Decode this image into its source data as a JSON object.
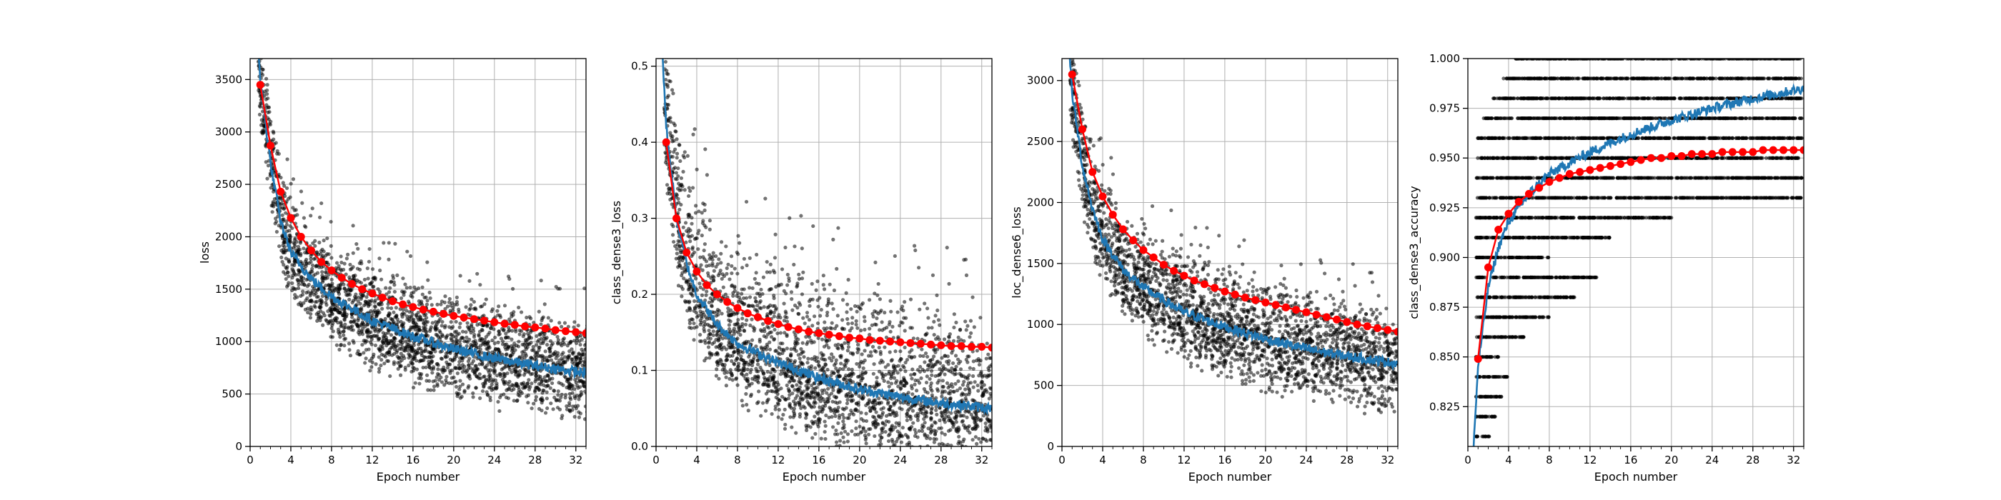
{
  "colors": {
    "batch_points": "#000000",
    "train_line": "#1f77b4",
    "val_line": "#ff0000",
    "grid": "#b0b0b0"
  },
  "chart_data": [
    {
      "type": "line",
      "xlabel": "Epoch number",
      "ylabel": "loss",
      "xlim": [
        0,
        33
      ],
      "ylim": [
        0,
        3700
      ],
      "xticks": [
        0,
        4,
        8,
        12,
        16,
        20,
        24,
        28,
        32
      ],
      "yticks": [
        0,
        500,
        1000,
        1500,
        2000,
        2500,
        3000,
        3500
      ],
      "tick_labels": [
        "0",
        "4",
        "8",
        "12",
        "16",
        "20",
        "24",
        "28",
        "32"
      ],
      "ytick_labels": [
        "0",
        "500",
        "1000",
        "1500",
        "2000",
        "2500",
        "3000",
        "3500"
      ],
      "grid": true,
      "series": [
        {
          "kind": "batch-scatter",
          "curve": {
            "x": [
              0.5,
              1,
              2,
              3,
              4,
              6,
              8,
              12,
              16,
              20,
              24,
              28,
              33
            ],
            "y": [
              4300,
              3500,
              2700,
              2150,
              1850,
              1600,
              1430,
              1200,
              1050,
              930,
              840,
              770,
              700
            ]
          },
          "spread_top": 280,
          "spread_bottom": 250
        },
        {
          "kind": "train-line",
          "x": [
            0.5,
            1,
            2,
            3,
            4,
            6,
            8,
            12,
            16,
            20,
            24,
            28,
            33
          ],
          "y": [
            4300,
            3500,
            2700,
            2150,
            1850,
            1600,
            1430,
            1200,
            1050,
            930,
            840,
            770,
            700
          ]
        },
        {
          "kind": "val-markers",
          "x": [
            1,
            2,
            3,
            4,
            5,
            6,
            7,
            8,
            9,
            10,
            11,
            12,
            13,
            14,
            15,
            16,
            17,
            18,
            19,
            20,
            21,
            22,
            23,
            24,
            25,
            26,
            27,
            28,
            29,
            30,
            31,
            32,
            33
          ],
          "y": [
            3450,
            2870,
            2430,
            2180,
            2000,
            1870,
            1760,
            1680,
            1610,
            1550,
            1500,
            1460,
            1420,
            1385,
            1355,
            1330,
            1305,
            1285,
            1265,
            1245,
            1230,
            1215,
            1200,
            1185,
            1170,
            1160,
            1145,
            1135,
            1125,
            1110,
            1100,
            1090,
            1080
          ]
        }
      ]
    },
    {
      "type": "line",
      "xlabel": "Epoch number",
      "ylabel": "class_dense3_loss",
      "xlim": [
        0,
        33
      ],
      "ylim": [
        0,
        0.51
      ],
      "xticks": [
        0,
        4,
        8,
        12,
        16,
        20,
        24,
        28,
        32
      ],
      "yticks": [
        0,
        0.1,
        0.2,
        0.3,
        0.4,
        0.5
      ],
      "tick_labels": [
        "0",
        "4",
        "8",
        "12",
        "16",
        "20",
        "24",
        "28",
        "32"
      ],
      "ytick_labels": [
        "0.0",
        "0.1",
        "0.2",
        "0.3",
        "0.4",
        "0.5"
      ],
      "grid": true,
      "series": [
        {
          "kind": "batch-scatter",
          "curve": {
            "x": [
              0.5,
              1,
              2,
              3,
              4,
              6,
              8,
              12,
              16,
              20,
              24,
              28,
              33
            ],
            "y": [
              0.55,
              0.42,
              0.3,
              0.24,
              0.2,
              0.16,
              0.135,
              0.11,
              0.09,
              0.075,
              0.065,
              0.057,
              0.05
            ]
          },
          "spread_top": 0.07,
          "spread_bottom": 0.045
        },
        {
          "kind": "train-line",
          "x": [
            0.5,
            1,
            2,
            3,
            4,
            6,
            8,
            12,
            16,
            20,
            24,
            28,
            33
          ],
          "y": [
            0.55,
            0.42,
            0.3,
            0.24,
            0.2,
            0.16,
            0.135,
            0.11,
            0.09,
            0.075,
            0.065,
            0.057,
            0.05
          ]
        },
        {
          "kind": "val-markers",
          "x": [
            1,
            2,
            3,
            4,
            5,
            6,
            7,
            8,
            9,
            10,
            11,
            12,
            13,
            14,
            15,
            16,
            17,
            18,
            19,
            20,
            21,
            22,
            23,
            24,
            25,
            26,
            27,
            28,
            29,
            30,
            31,
            32,
            33
          ],
          "y": [
            0.4,
            0.3,
            0.255,
            0.23,
            0.212,
            0.2,
            0.19,
            0.182,
            0.175,
            0.17,
            0.165,
            0.161,
            0.157,
            0.154,
            0.151,
            0.149,
            0.147,
            0.145,
            0.143,
            0.142,
            0.14,
            0.139,
            0.138,
            0.137,
            0.136,
            0.135,
            0.134,
            0.133,
            0.132,
            0.132,
            0.131,
            0.131,
            0.13
          ]
        }
      ]
    },
    {
      "type": "line",
      "xlabel": "Epoch number",
      "ylabel": "loc_dense6_loss",
      "xlim": [
        0,
        33
      ],
      "ylim": [
        0,
        3180
      ],
      "xticks": [
        0,
        4,
        8,
        12,
        16,
        20,
        24,
        28,
        32
      ],
      "yticks": [
        0,
        500,
        1000,
        1500,
        2000,
        2500,
        3000
      ],
      "tick_labels": [
        "0",
        "4",
        "8",
        "12",
        "16",
        "20",
        "24",
        "28",
        "32"
      ],
      "ytick_labels": [
        "0",
        "500",
        "1000",
        "1500",
        "2000",
        "2500",
        "3000"
      ],
      "grid": true,
      "series": [
        {
          "kind": "batch-scatter",
          "curve": {
            "x": [
              0.5,
              1,
              2,
              3,
              4,
              6,
              8,
              12,
              16,
              20,
              24,
              28,
              33
            ],
            "y": [
              3500,
              2900,
              2300,
              1950,
              1700,
              1450,
              1300,
              1100,
              980,
              880,
              800,
              740,
              680
            ]
          },
          "spread_top": 260,
          "spread_bottom": 230
        },
        {
          "kind": "train-line",
          "x": [
            0.5,
            1,
            2,
            3,
            4,
            6,
            8,
            12,
            16,
            20,
            24,
            28,
            33
          ],
          "y": [
            3500,
            2900,
            2300,
            1950,
            1700,
            1450,
            1300,
            1100,
            980,
            880,
            800,
            740,
            680
          ]
        },
        {
          "kind": "val-markers",
          "x": [
            1,
            2,
            3,
            4,
            5,
            6,
            7,
            8,
            9,
            10,
            11,
            12,
            13,
            14,
            15,
            16,
            17,
            18,
            19,
            20,
            21,
            22,
            23,
            24,
            25,
            26,
            27,
            28,
            29,
            30,
            31,
            32,
            33
          ],
          "y": [
            3050,
            2600,
            2250,
            2050,
            1900,
            1780,
            1690,
            1610,
            1550,
            1490,
            1440,
            1400,
            1360,
            1330,
            1300,
            1270,
            1245,
            1220,
            1200,
            1180,
            1160,
            1140,
            1120,
            1100,
            1080,
            1060,
            1040,
            1020,
            1000,
            985,
            970,
            955,
            940
          ]
        }
      ]
    },
    {
      "type": "line",
      "xlabel": "Epoch number",
      "ylabel": "class_dense3_accuracy",
      "xlim": [
        0,
        33
      ],
      "ylim": [
        0.805,
        1.0
      ],
      "xticks": [
        0,
        4,
        8,
        12,
        16,
        20,
        24,
        28,
        32
      ],
      "yticks": [
        0.825,
        0.85,
        0.875,
        0.9,
        0.925,
        0.95,
        0.975,
        1.0
      ],
      "tick_labels": [
        "0",
        "4",
        "8",
        "12",
        "16",
        "20",
        "24",
        "28",
        "32"
      ],
      "ytick_labels": [
        "0.825",
        "0.850",
        "0.875",
        "0.900",
        "0.925",
        "0.950",
        "0.975",
        "1.000"
      ],
      "grid": true,
      "series": [
        {
          "kind": "batch-levels",
          "levels": [
            0.81,
            0.82,
            0.83,
            0.84,
            0.85,
            0.86,
            0.87,
            0.88,
            0.89,
            0.9,
            0.91,
            0.92,
            0.93,
            0.94,
            0.95,
            0.96,
            0.97,
            0.98,
            0.99,
            1.0
          ],
          "curve": {
            "x": [
              0.5,
              1,
              2,
              3,
              4,
              6,
              8,
              12,
              16,
              20,
              24,
              28,
              33
            ],
            "y": [
              0.8,
              0.845,
              0.885,
              0.905,
              0.918,
              0.932,
              0.942,
              0.953,
              0.962,
              0.969,
              0.975,
              0.98,
              0.985
            ]
          }
        },
        {
          "kind": "train-line",
          "x": [
            0.5,
            1,
            2,
            3,
            4,
            6,
            8,
            12,
            16,
            20,
            24,
            28,
            33
          ],
          "y": [
            0.8,
            0.845,
            0.885,
            0.905,
            0.918,
            0.932,
            0.942,
            0.953,
            0.962,
            0.969,
            0.975,
            0.98,
            0.985
          ]
        },
        {
          "kind": "val-markers",
          "x": [
            1,
            2,
            3,
            4,
            5,
            6,
            7,
            8,
            9,
            10,
            11,
            12,
            13,
            14,
            15,
            16,
            17,
            18,
            19,
            20,
            21,
            22,
            23,
            24,
            25,
            26,
            27,
            28,
            29,
            30,
            31,
            32,
            33
          ],
          "y": [
            0.849,
            0.895,
            0.914,
            0.922,
            0.928,
            0.932,
            0.935,
            0.938,
            0.94,
            0.942,
            0.943,
            0.944,
            0.945,
            0.946,
            0.947,
            0.948,
            0.949,
            0.95,
            0.95,
            0.951,
            0.951,
            0.952,
            0.952,
            0.952,
            0.953,
            0.953,
            0.953,
            0.953,
            0.954,
            0.954,
            0.954,
            0.954,
            0.954
          ]
        }
      ]
    }
  ]
}
